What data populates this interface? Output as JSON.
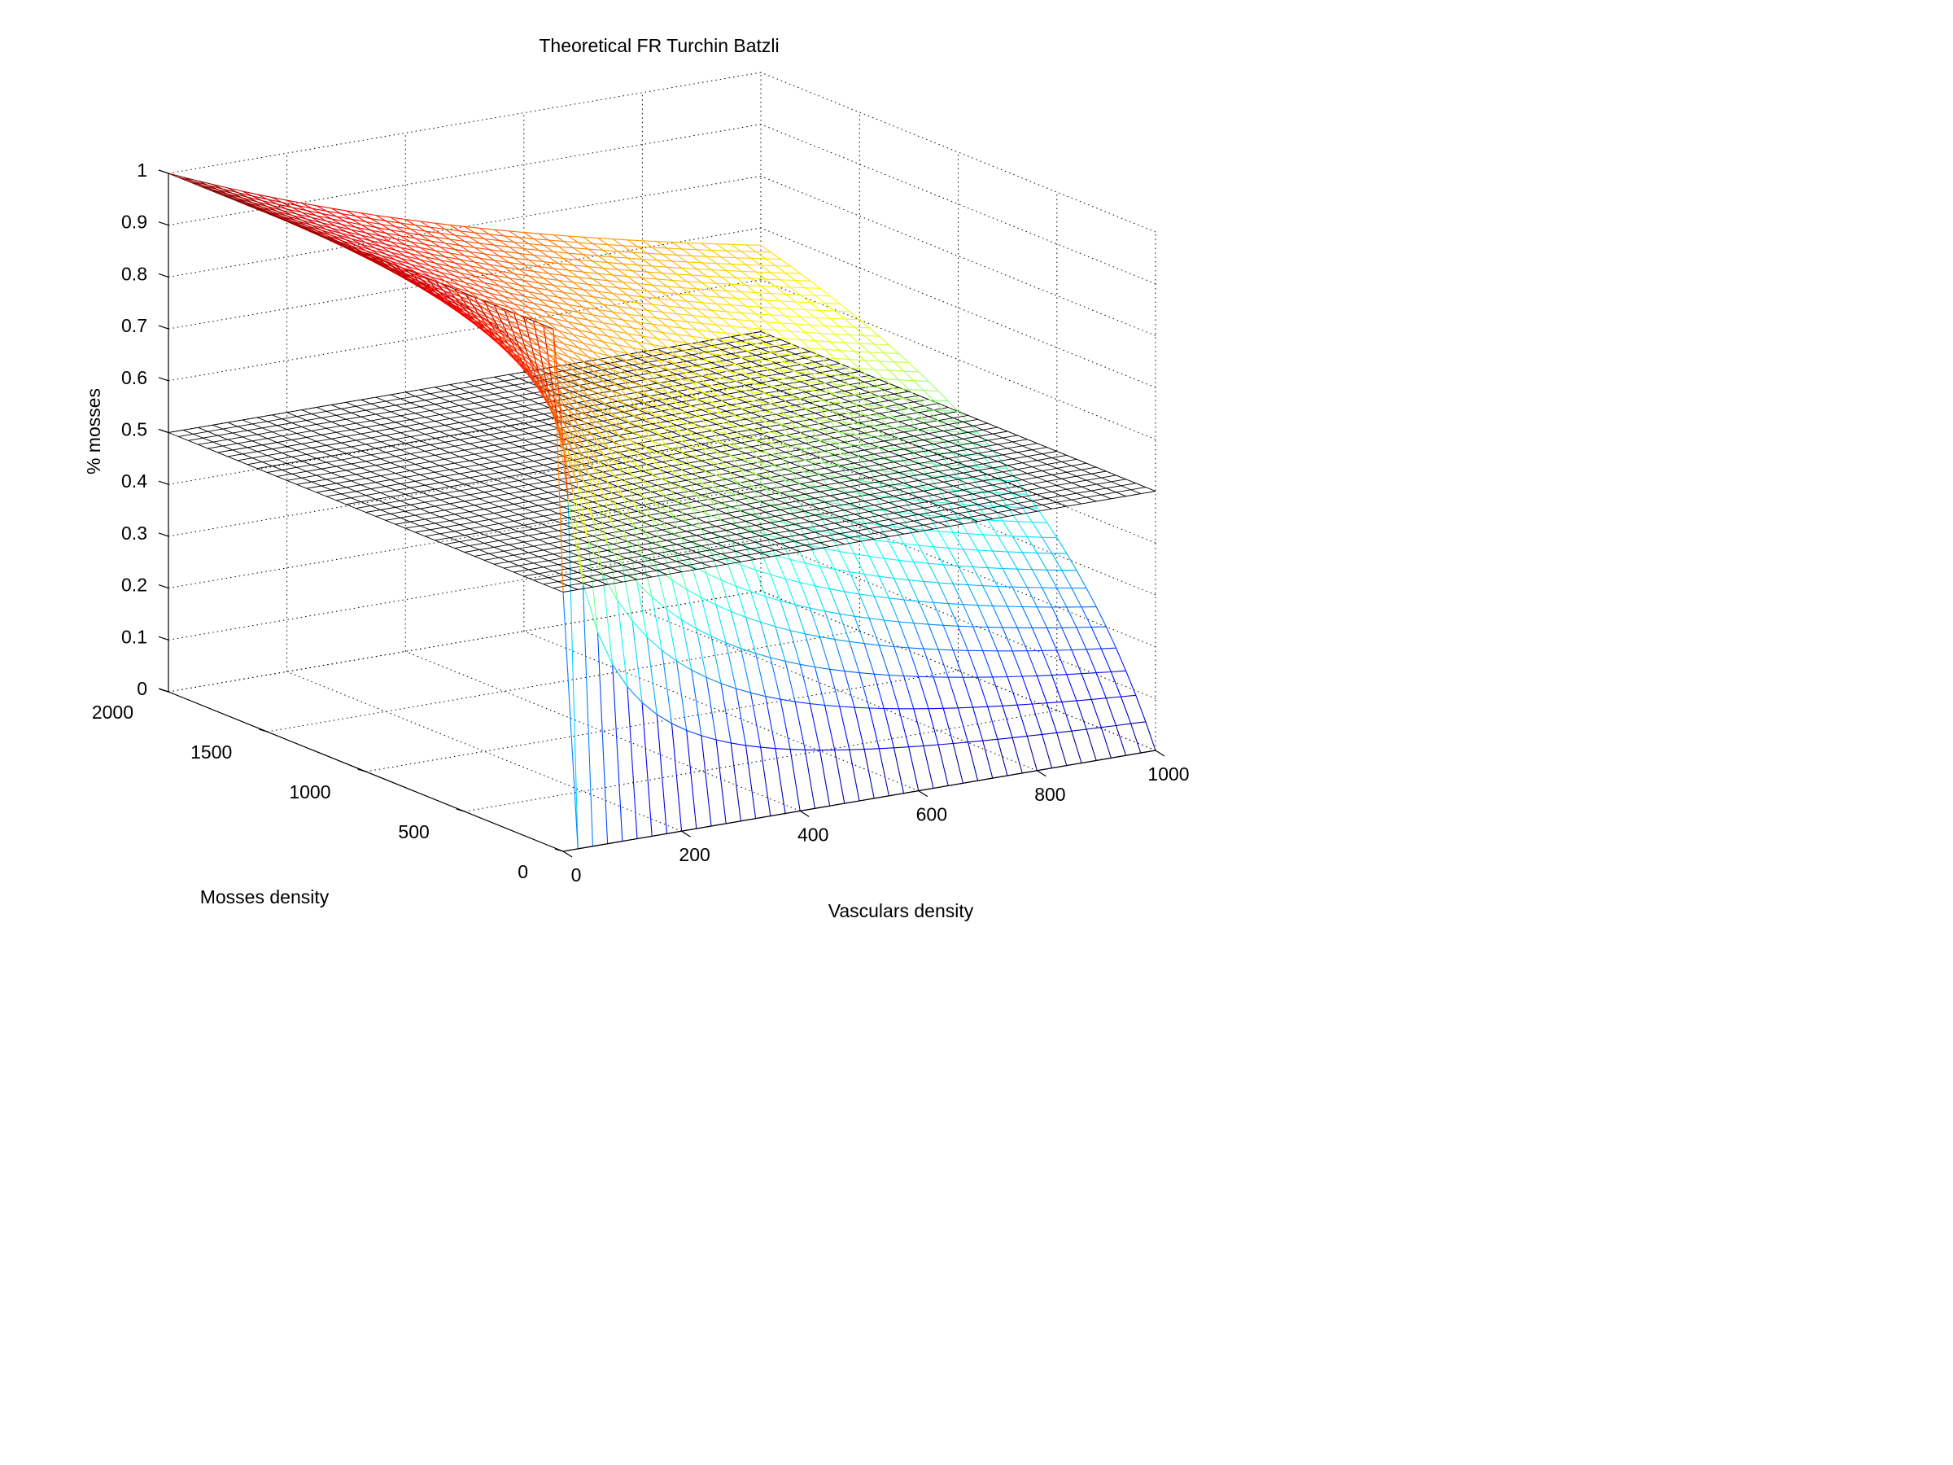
{
  "chart_data": {
    "type": "surface",
    "title": "Theoretical FR Turchin Batzli",
    "xlabel": "Vasculars density",
    "ylabel": "Mosses density",
    "zlabel": "% mosses",
    "xlim": [
      0,
      1000
    ],
    "ylim": [
      0,
      2000
    ],
    "zlim": [
      0,
      1
    ],
    "x_ticks": [
      "0",
      "200",
      "400",
      "600",
      "800",
      "1000"
    ],
    "y_ticks": [
      "0",
      "500",
      "1000",
      "1500",
      "2000"
    ],
    "z_ticks": [
      "0",
      "0.1",
      "0.2",
      "0.3",
      "0.4",
      "0.5",
      "0.6",
      "0.7",
      "0.8",
      "0.9",
      "1"
    ],
    "grid": true,
    "colormap": "jet",
    "series": [
      {
        "kind": "surface",
        "formula": "z = M / (M + V)",
        "x_range": [
          0,
          1000
        ],
        "y_range": [
          0,
          2000
        ],
        "grid_lines": 41,
        "sample_values": [
          {
            "x": 0,
            "y": 2000,
            "z": 1.0
          },
          {
            "x": 1000,
            "y": 2000,
            "z": 0.67
          },
          {
            "x": 500,
            "y": 500,
            "z": 0.5
          },
          {
            "x": 1000,
            "y": 0,
            "z": 0.0
          },
          {
            "x": 0,
            "y": 0,
            "z": 0.5
          }
        ]
      },
      {
        "kind": "plane",
        "z": 0.5,
        "color": "#000000",
        "grid_lines": 41
      }
    ]
  }
}
